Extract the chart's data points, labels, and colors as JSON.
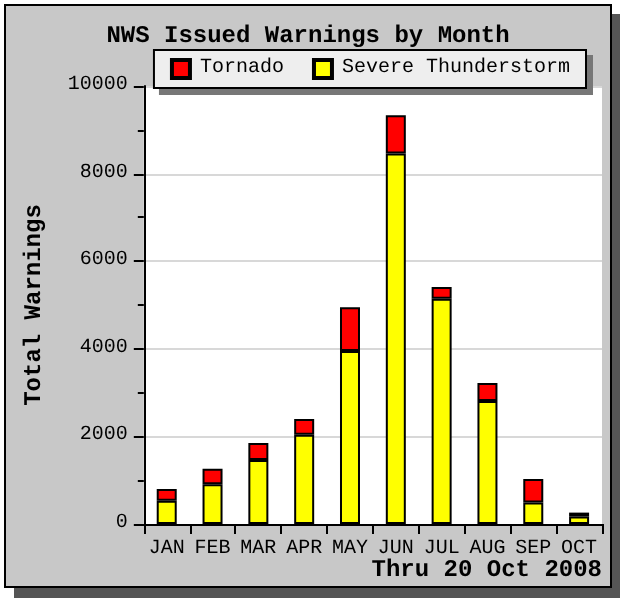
{
  "chart_data": {
    "type": "bar",
    "title": "NWS Issued Warnings by Month",
    "ylabel": "Total Warnings",
    "categories": [
      "JAN",
      "FEB",
      "MAR",
      "APR",
      "MAY",
      "JUN",
      "JUL",
      "AUG",
      "SEP",
      "OCT"
    ],
    "series": [
      {
        "name": "Severe Thunderstorm",
        "color": "#ffff00",
        "values": [
          530,
          910,
          1460,
          2040,
          3950,
          8460,
          5140,
          2810,
          490,
          170
        ]
      },
      {
        "name": "Tornado",
        "color": "#ff0000",
        "values": [
          270,
          350,
          390,
          360,
          1000,
          870,
          270,
          410,
          540,
          90
        ]
      }
    ],
    "stacked": true,
    "ylim": [
      0,
      10000
    ],
    "yticks": [
      0,
      2000,
      4000,
      6000,
      8000,
      10000
    ],
    "grid": "y",
    "legend": "top right",
    "annotations": [
      "Thru 20 Oct 2008"
    ]
  }
}
